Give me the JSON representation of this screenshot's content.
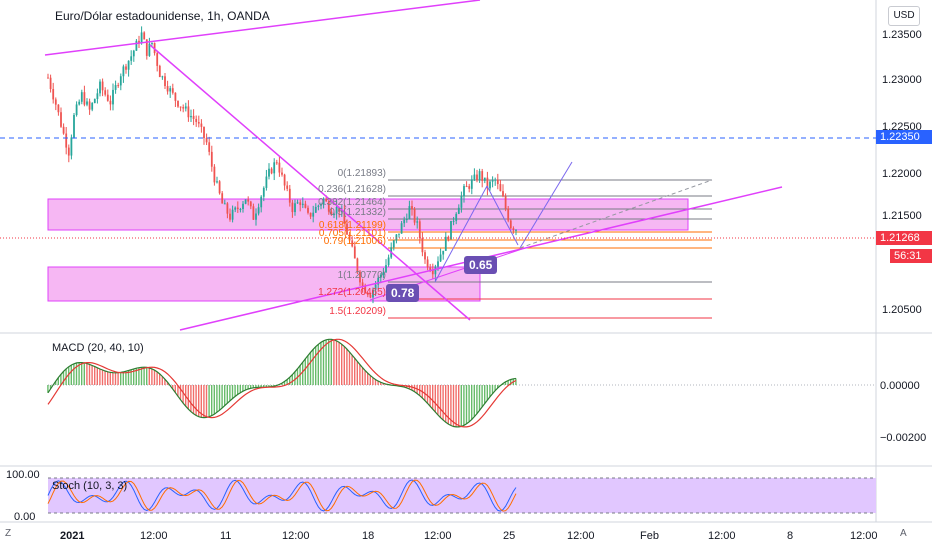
{
  "header": {
    "title": "Euro/Dólar estadounidense, 1h, OANDA",
    "currency_button": "USD"
  },
  "main_pane": {
    "price_ticks": [
      "1.23500",
      "1.23000",
      "1.22500",
      "1.22000",
      "1.21500",
      "1.20500"
    ],
    "horizontal_line_price": "1.22350",
    "current_price": "1.21268",
    "countdown": "56:31",
    "fib_badges": [
      "0.65",
      "0.78"
    ],
    "fib_levels": [
      {
        "label": "0(1.21893)"
      },
      {
        "label": "0.236(1.21628)"
      },
      {
        "label": "0.382(1.21464)"
      },
      {
        "label": "0.5(1.21332)"
      },
      {
        "label": "0.618(1.21199)"
      },
      {
        "label": "0.705(1.21101)"
      },
      {
        "label": "0.79(1.21006)"
      },
      {
        "label": "1(1.20770)"
      },
      {
        "label": "1.272(1.20465)"
      },
      {
        "label": "1.5(1.20209)"
      }
    ]
  },
  "macd_pane": {
    "label": "MACD (20, 40, 10)",
    "ticks": [
      "0.00000",
      "−0.00200"
    ]
  },
  "stoch_pane": {
    "label": "Stoch (10, 3, 3)",
    "ticks": [
      "100.00",
      "0.00"
    ]
  },
  "time_axis": {
    "labels": [
      "2021",
      "12:00",
      "11",
      "12:00",
      "18",
      "12:00",
      "25",
      "12:00",
      "Feb",
      "12:00",
      "8",
      "12:00"
    ]
  },
  "bottom_bar": {
    "left_icon": "Z",
    "right_icon": "A"
  },
  "colors": {
    "up": "#26a69a",
    "down": "#ef5350",
    "accent": "#e040fb",
    "fib_badge": "#6a4fb3",
    "price_tag": "#f23645",
    "hline": "#2962ff"
  },
  "chart_data": {
    "type": "candlestick",
    "symbol": "EUR/USD",
    "interval": "1h",
    "ylim": [
      1.201,
      1.238
    ],
    "close_path": [
      [
        0,
        1.23
      ],
      [
        3,
        1.227
      ],
      [
        6,
        1.2235
      ],
      [
        8,
        1.2215
      ],
      [
        10,
        1.2255
      ],
      [
        13,
        1.228
      ],
      [
        16,
        1.2262
      ],
      [
        20,
        1.229
      ],
      [
        24,
        1.2272
      ],
      [
        28,
        1.2305
      ],
      [
        32,
        1.2325
      ],
      [
        36,
        1.235
      ],
      [
        38,
        1.233
      ],
      [
        40,
        1.234
      ],
      [
        43,
        1.2305
      ],
      [
        46,
        1.229
      ],
      [
        49,
        1.2275
      ],
      [
        53,
        1.2262
      ],
      [
        57,
        1.225
      ],
      [
        61,
        1.2225
      ],
      [
        64,
        1.2185
      ],
      [
        67,
        1.2155
      ],
      [
        70,
        1.214
      ],
      [
        73,
        1.215
      ],
      [
        76,
        1.2162
      ],
      [
        79,
        1.214
      ],
      [
        82,
        1.2165
      ],
      [
        85,
        1.219
      ],
      [
        88,
        1.2205
      ],
      [
        91,
        1.2175
      ],
      [
        94,
        1.215
      ],
      [
        97,
        1.2158
      ],
      [
        100,
        1.214
      ],
      [
        103,
        1.215
      ],
      [
        106,
        1.216
      ],
      [
        109,
        1.2148
      ],
      [
        112,
        1.215
      ],
      [
        115,
        1.2122
      ],
      [
        118,
        1.209
      ],
      [
        121,
        1.206
      ],
      [
        124,
        1.2052
      ],
      [
        127,
        1.2068
      ],
      [
        130,
        1.2085
      ],
      [
        133,
        1.211
      ],
      [
        136,
        1.213
      ],
      [
        139,
        1.215
      ],
      [
        142,
        1.213
      ],
      [
        145,
        1.209
      ],
      [
        148,
        1.208
      ],
      [
        151,
        1.2098
      ],
      [
        154,
        1.212
      ],
      [
        157,
        1.2148
      ],
      [
        160,
        1.217
      ],
      [
        163,
        1.218
      ],
      [
        166,
        1.2189
      ],
      [
        169,
        1.2175
      ],
      [
        172,
        1.2182
      ],
      [
        175,
        1.216
      ],
      [
        178,
        1.213
      ],
      [
        180,
        1.2127
      ]
    ],
    "hline": 1.2235,
    "current_price": 1.21268,
    "macd": {
      "params": [
        20,
        40,
        10
      ],
      "ylim": [
        -0.003,
        0.002
      ]
    },
    "stoch": {
      "params": [
        10,
        3,
        3
      ],
      "ylim": [
        0,
        100
      ]
    }
  }
}
